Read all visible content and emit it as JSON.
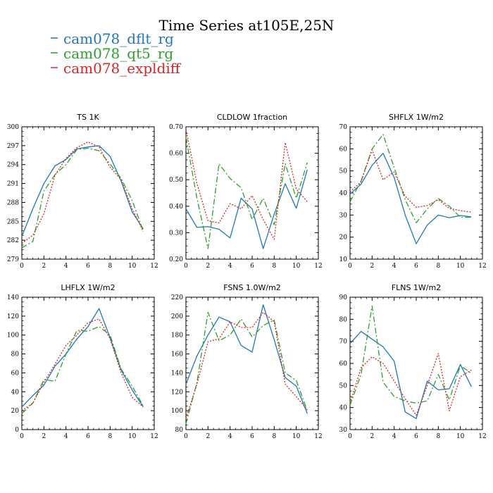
{
  "figure": {
    "title": "Time Series at105E,25N"
  },
  "legend": [
    {
      "name": "cam078_dflt_rg",
      "color": "#1f77b4",
      "dash": "solid"
    },
    {
      "name": "cam078_qt5_rg",
      "color": "#2ca02c",
      "dash": "longdash"
    },
    {
      "name": "cam078_expldiff",
      "color": "#d62728",
      "dash": "dotted"
    }
  ],
  "chart_data": [
    {
      "type": "line",
      "title": "TS",
      "unit": "1K",
      "x": [
        0,
        1,
        2,
        3,
        4,
        5,
        6,
        7,
        8,
        9,
        10,
        11
      ],
      "xlim": [
        0,
        12
      ],
      "xticks": [
        0,
        2,
        4,
        6,
        8,
        10,
        12
      ],
      "ylim": [
        279,
        300
      ],
      "yticks": [
        279,
        282,
        285,
        288,
        291,
        294,
        297,
        300
      ],
      "series": [
        {
          "name": "cam078_dflt_rg",
          "values": [
            282.6,
            287.0,
            291.0,
            293.8,
            294.8,
            296.5,
            296.8,
            297.0,
            295.3,
            291.4,
            286.5,
            283.8
          ]
        },
        {
          "name": "cam078_qt5_rg",
          "values": [
            280.8,
            281.8,
            289.8,
            292.4,
            294.0,
            296.4,
            296.6,
            296.2,
            294.1,
            291.8,
            288.3,
            283.5
          ]
        },
        {
          "name": "cam078_expldiff",
          "values": [
            281.5,
            282.8,
            286.2,
            292.3,
            295.0,
            296.7,
            297.6,
            296.8,
            293.6,
            291.6,
            287.0,
            283.4
          ]
        }
      ]
    },
    {
      "type": "line",
      "title": "CLDLOW",
      "unit": "1fraction",
      "x": [
        0,
        1,
        2,
        3,
        4,
        5,
        6,
        7,
        8,
        9,
        10,
        11
      ],
      "xlim": [
        0,
        12
      ],
      "xticks": [
        0,
        2,
        4,
        6,
        8,
        10,
        12
      ],
      "ylim": [
        0.2,
        0.7
      ],
      "yticks": [
        0.2,
        0.3,
        0.4,
        0.5,
        0.6,
        0.7
      ],
      "series": [
        {
          "name": "cam078_dflt_rg",
          "values": [
            0.39,
            0.32,
            0.323,
            0.313,
            0.28,
            0.43,
            0.39,
            0.24,
            0.37,
            0.485,
            0.392,
            0.538
          ]
        },
        {
          "name": "cam078_qt5_rg",
          "values": [
            0.66,
            0.43,
            0.24,
            0.56,
            0.505,
            0.47,
            0.35,
            0.43,
            0.33,
            0.56,
            0.43,
            0.565
          ]
        },
        {
          "name": "cam078_expldiff",
          "values": [
            0.69,
            0.485,
            0.345,
            0.337,
            0.41,
            0.39,
            0.44,
            0.35,
            0.275,
            0.64,
            0.465,
            0.417
          ]
        }
      ]
    },
    {
      "type": "line",
      "title": "SHFLX",
      "unit": "1W/m2",
      "x": [
        0,
        1,
        2,
        3,
        4,
        5,
        6,
        7,
        8,
        9,
        10,
        11
      ],
      "xlim": [
        0,
        12
      ],
      "xticks": [
        0,
        2,
        4,
        6,
        8,
        10,
        12
      ],
      "ylim": [
        10,
        70
      ],
      "yticks": [
        10,
        20,
        30,
        40,
        50,
        60,
        70
      ],
      "series": [
        {
          "name": "cam078_dflt_rg",
          "values": [
            39.5,
            44.0,
            52.5,
            58.0,
            47.0,
            30.0,
            17.0,
            25.5,
            30.0,
            28.8,
            29.8,
            29.2
          ]
        },
        {
          "name": "cam078_qt5_rg",
          "values": [
            36.0,
            45.5,
            60.0,
            66.5,
            51.5,
            37.0,
            26.5,
            32.8,
            37.5,
            34.0,
            29.0,
            29.0
          ]
        },
        {
          "name": "cam078_expldiff",
          "values": [
            40.5,
            45.0,
            59.5,
            46.0,
            49.5,
            38.5,
            33.5,
            34.3,
            37.0,
            33.0,
            32.0,
            31.3
          ]
        }
      ]
    },
    {
      "type": "line",
      "title": "LHFLX",
      "unit": "1W/m2",
      "x": [
        0,
        1,
        2,
        3,
        4,
        5,
        6,
        7,
        8,
        9,
        10,
        11
      ],
      "xlim": [
        0,
        12
      ],
      "xticks": [
        0,
        2,
        4,
        6,
        8,
        10,
        12
      ],
      "ylim": [
        0,
        140
      ],
      "yticks": [
        0,
        20,
        40,
        60,
        80,
        100,
        120,
        140
      ],
      "series": [
        {
          "name": "cam078_dflt_rg",
          "values": [
            24,
            36,
            47,
            67,
            80,
            96,
            109,
            128,
            97,
            63,
            42,
            24
          ]
        },
        {
          "name": "cam078_qt5_rg",
          "values": [
            17,
            28,
            53,
            51,
            80,
            105,
            104,
            109,
            100,
            64,
            46,
            25
          ]
        },
        {
          "name": "cam078_expldiff",
          "values": [
            20,
            28,
            50,
            69,
            89,
            100,
            113,
            117,
            96,
            60,
            34,
            24
          ]
        }
      ]
    },
    {
      "type": "line",
      "title": "FSNS",
      "unit": "1.0W/m2",
      "x": [
        0,
        1,
        2,
        3,
        4,
        5,
        6,
        7,
        8,
        9,
        10,
        11
      ],
      "xlim": [
        0,
        12
      ],
      "xticks": [
        0,
        2,
        4,
        6,
        8,
        10,
        12
      ],
      "ylim": [
        80,
        220
      ],
      "yticks": [
        80,
        100,
        120,
        140,
        160,
        180,
        200,
        220
      ],
      "series": [
        {
          "name": "cam078_dflt_rg",
          "values": [
            128,
            158,
            180,
            199,
            194,
            169,
            162,
            212,
            175,
            135,
            126,
            97
          ]
        },
        {
          "name": "cam078_qt5_rg",
          "values": [
            86,
            130,
            204,
            174,
            180,
            197,
            178,
            190,
            196,
            140,
            132,
            100
          ]
        },
        {
          "name": "cam078_expldiff",
          "values": [
            92,
            128,
            173,
            176,
            194,
            188,
            188,
            204,
            194,
            128,
            115,
            101
          ]
        }
      ]
    },
    {
      "type": "line",
      "title": "FLNS",
      "unit": "1W/m2",
      "x": [
        0,
        1,
        2,
        3,
        4,
        5,
        6,
        7,
        8,
        9,
        10,
        11
      ],
      "xlim": [
        0,
        12
      ],
      "xticks": [
        0,
        2,
        4,
        6,
        8,
        10,
        12
      ],
      "ylim": [
        30,
        90
      ],
      "yticks": [
        30,
        40,
        50,
        60,
        70,
        80,
        90
      ],
      "series": [
        {
          "name": "cam078_dflt_rg",
          "values": [
            69.0,
            74.5,
            71.0,
            67.5,
            61.0,
            38.0,
            35.0,
            52.0,
            48.0,
            48.5,
            59.5,
            49.5
          ]
        },
        {
          "name": "cam078_qt5_rg",
          "values": [
            41.0,
            55.0,
            86.0,
            51.5,
            45.0,
            43.0,
            42.0,
            43.0,
            55.0,
            43.5,
            59.0,
            55.5
          ]
        },
        {
          "name": "cam078_expldiff",
          "values": [
            42.0,
            58.0,
            63.0,
            60.0,
            52.0,
            44.0,
            36.5,
            50.0,
            64.5,
            38.5,
            54.0,
            57.0
          ]
        }
      ]
    }
  ]
}
